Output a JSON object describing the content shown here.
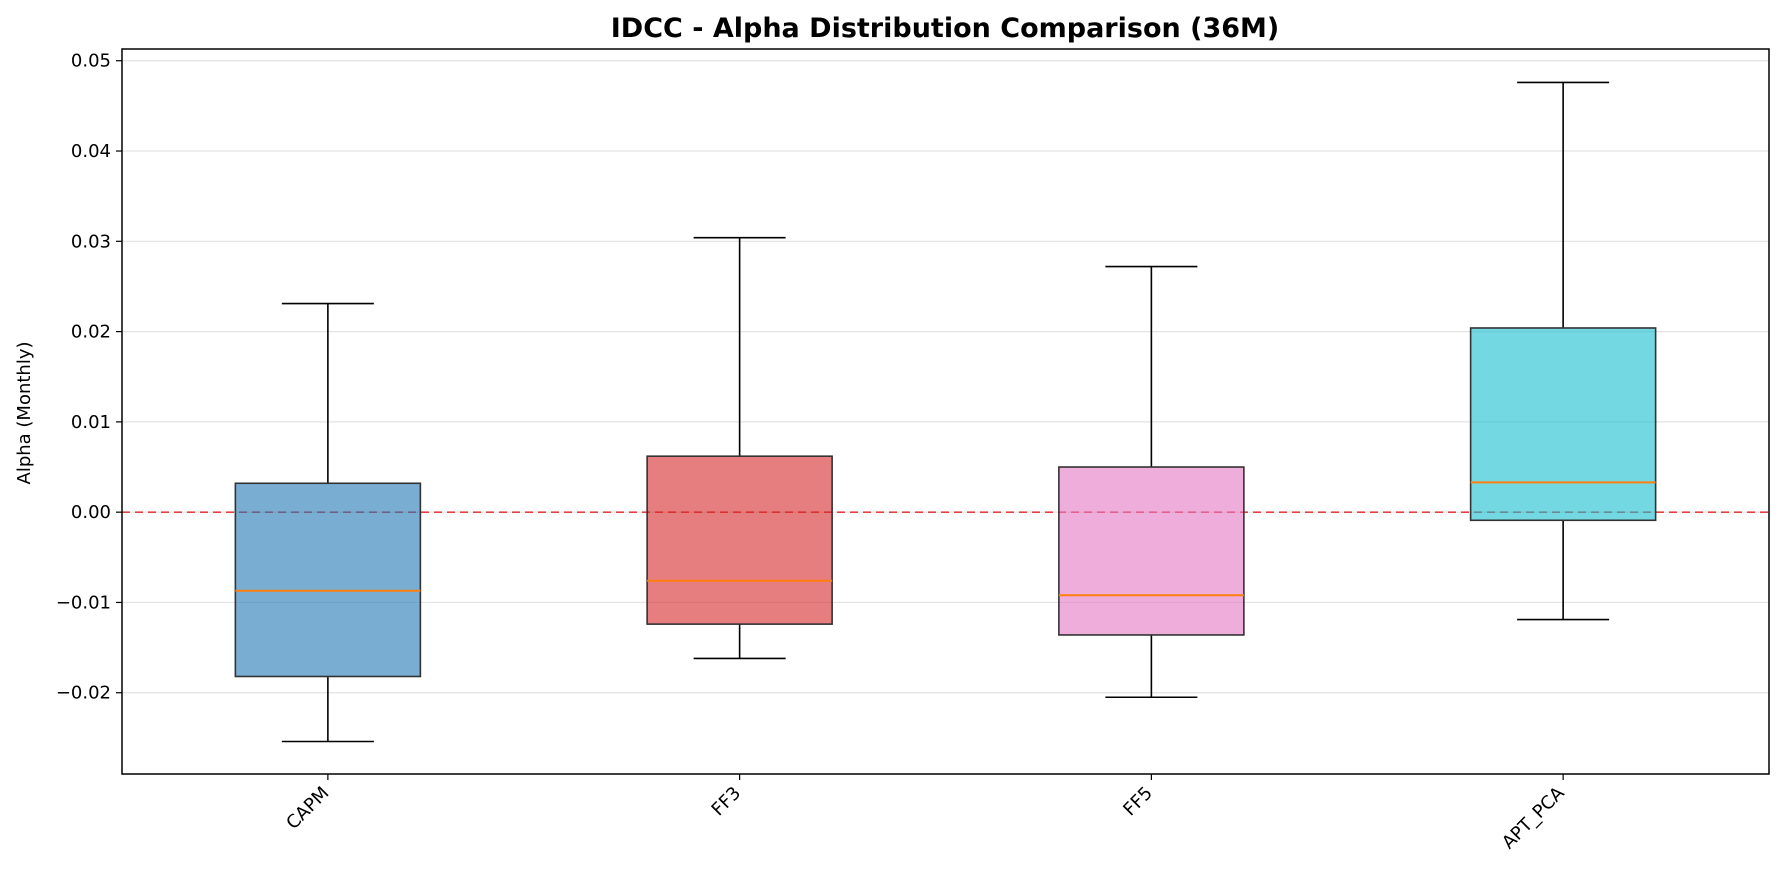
{
  "chart_data": {
    "type": "boxplot",
    "title": "IDCC - Alpha Distribution Comparison (36M)",
    "xlabel": "",
    "ylabel": "Alpha (Monthly)",
    "ylim": [
      -0.029,
      0.0513
    ],
    "yticks": [
      {
        "value": -0.02,
        "label": "−0.02"
      },
      {
        "value": -0.01,
        "label": "−0.01"
      },
      {
        "value": 0.0,
        "label": "0.00"
      },
      {
        "value": 0.01,
        "label": "0.01"
      },
      {
        "value": 0.02,
        "label": "0.02"
      },
      {
        "value": 0.03,
        "label": "0.03"
      },
      {
        "value": 0.04,
        "label": "0.04"
      },
      {
        "value": 0.05,
        "label": "0.05"
      }
    ],
    "categories": [
      "CAPM",
      "FF3",
      "FF5",
      "APT_PCA"
    ],
    "boxes": [
      {
        "whisker_low": -0.0254,
        "q1": -0.0182,
        "median": -0.0087,
        "q3": 0.0032,
        "whisker_high": 0.0231,
        "color": "#1f77b4"
      },
      {
        "whisker_low": -0.0162,
        "q1": -0.0124,
        "median": -0.0076,
        "q3": 0.0062,
        "whisker_high": 0.0304,
        "color": "#d62728"
      },
      {
        "whisker_low": -0.0205,
        "q1": -0.0136,
        "median": -0.0092,
        "q3": 0.005,
        "whisker_high": 0.0272,
        "color": "#e377c2"
      },
      {
        "whisker_low": -0.0119,
        "q1": -0.0009,
        "median": 0.0033,
        "q3": 0.0204,
        "whisker_high": 0.0476,
        "color": "#17becf"
      }
    ],
    "reference_line": {
      "value": 0.0,
      "color": "#e03030",
      "style": "dashed"
    },
    "median_color": "#ff7f0e",
    "grid": "y",
    "legend": "none"
  }
}
